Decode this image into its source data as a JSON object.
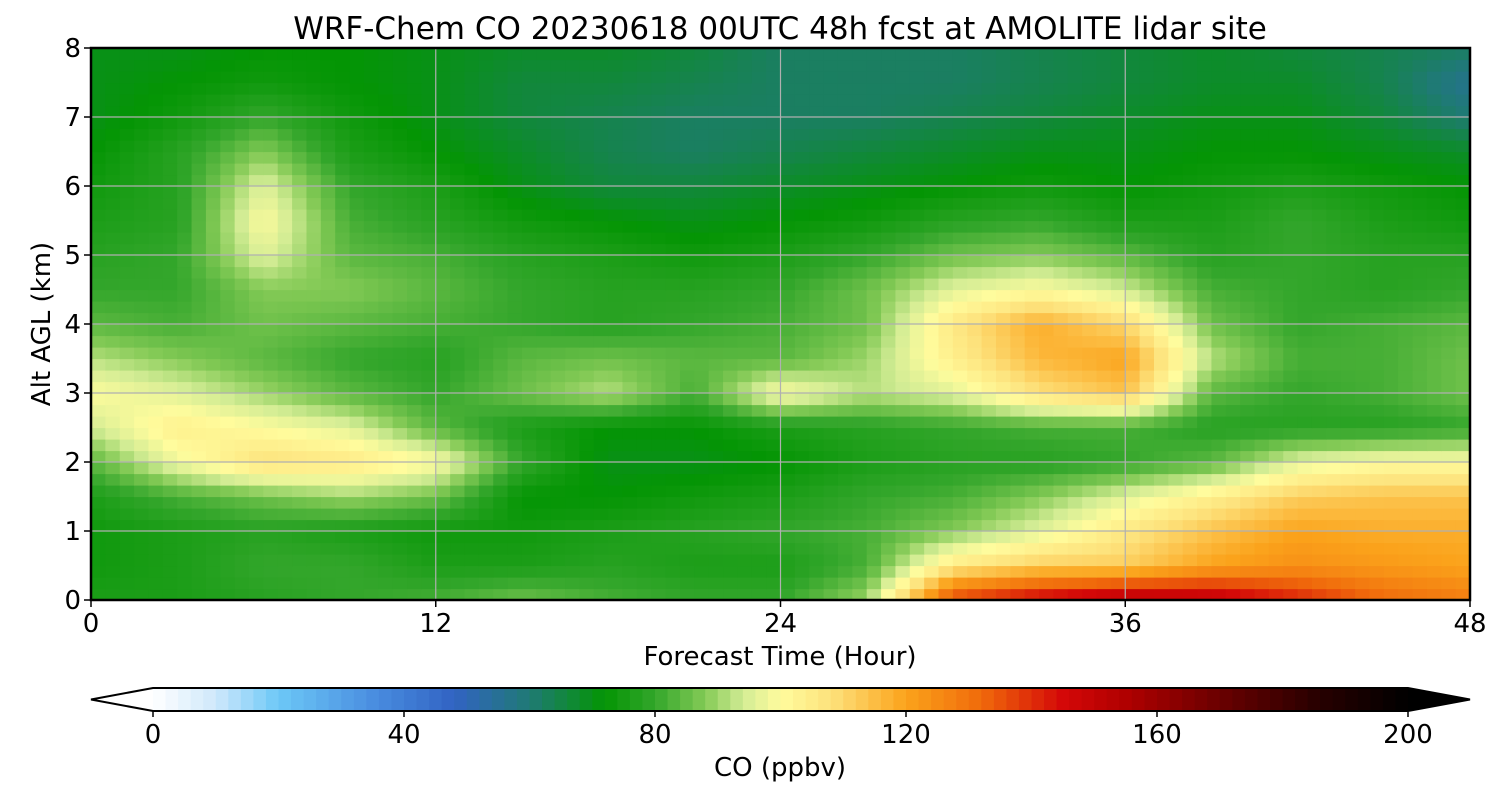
{
  "chart_data": {
    "type": "heatmap",
    "title": "WRF-Chem CO  20230618 00UTC 48h fcst at AMOLITE lidar site",
    "xlabel": "Forecast Time (Hour)",
    "ylabel": "Alt AGL (km)",
    "xlim": [
      0,
      48
    ],
    "ylim": [
      0,
      8
    ],
    "x_ticks": [
      0,
      12,
      24,
      36,
      48
    ],
    "y_ticks": [
      0,
      1,
      2,
      3,
      4,
      5,
      6,
      7,
      8
    ],
    "grid": true,
    "x": [
      0,
      3,
      6,
      9,
      12,
      15,
      18,
      21,
      24,
      27,
      30,
      33,
      36,
      39,
      42,
      45,
      48
    ],
    "y": [
      0,
      0.5,
      1,
      1.5,
      2,
      2.5,
      3,
      3.5,
      4,
      4.5,
      5,
      5.5,
      6,
      6.5,
      7,
      7.5,
      8
    ],
    "values": [
      [
        76,
        76,
        78,
        80,
        82,
        86,
        82,
        80,
        80,
        90,
        138,
        148,
        155,
        152,
        142,
        132,
        128
      ],
      [
        74,
        76,
        80,
        80,
        76,
        76,
        78,
        76,
        76,
        82,
        106,
        112,
        112,
        120,
        124,
        122,
        120
      ],
      [
        74,
        76,
        78,
        76,
        74,
        74,
        76,
        78,
        80,
        82,
        88,
        96,
        106,
        114,
        120,
        118,
        118
      ],
      [
        76,
        82,
        86,
        90,
        86,
        72,
        72,
        74,
        76,
        80,
        82,
        88,
        96,
        104,
        112,
        114,
        114
      ],
      [
        84,
        98,
        108,
        106,
        100,
        80,
        70,
        70,
        72,
        76,
        78,
        78,
        80,
        84,
        96,
        100,
        100
      ],
      [
        94,
        104,
        100,
        96,
        84,
        76,
        72,
        72,
        76,
        78,
        80,
        82,
        82,
        78,
        78,
        78,
        80
      ],
      [
        100,
        96,
        90,
        84,
        80,
        86,
        92,
        82,
        100,
        92,
        96,
        108,
        114,
        84,
        80,
        82,
        86
      ],
      [
        92,
        88,
        84,
        80,
        78,
        84,
        86,
        84,
        84,
        90,
        104,
        116,
        120,
        92,
        82,
        82,
        86
      ],
      [
        84,
        82,
        86,
        84,
        82,
        80,
        78,
        80,
        82,
        86,
        106,
        118,
        110,
        86,
        80,
        82,
        84
      ],
      [
        80,
        80,
        88,
        88,
        84,
        80,
        78,
        78,
        80,
        86,
        96,
        100,
        94,
        82,
        80,
        78,
        80
      ],
      [
        78,
        80,
        96,
        84,
        82,
        78,
        76,
        74,
        76,
        80,
        86,
        88,
        84,
        78,
        80,
        78,
        78
      ],
      [
        76,
        78,
        100,
        82,
        78,
        74,
        72,
        70,
        72,
        74,
        78,
        80,
        76,
        76,
        80,
        76,
        74
      ],
      [
        74,
        78,
        96,
        80,
        76,
        70,
        66,
        66,
        68,
        70,
        72,
        74,
        72,
        74,
        76,
        74,
        72
      ],
      [
        72,
        78,
        88,
        76,
        72,
        68,
        64,
        62,
        64,
        66,
        68,
        70,
        70,
        72,
        72,
        70,
        68
      ],
      [
        70,
        74,
        80,
        74,
        70,
        66,
        64,
        62,
        62,
        62,
        64,
        66,
        68,
        70,
        70,
        66,
        60
      ],
      [
        70,
        72,
        74,
        72,
        70,
        66,
        66,
        64,
        62,
        62,
        62,
        64,
        66,
        68,
        68,
        64,
        56
      ],
      [
        70,
        70,
        72,
        72,
        70,
        68,
        68,
        66,
        62,
        62,
        62,
        64,
        66,
        68,
        66,
        64,
        62
      ]
    ],
    "colorbar": {
      "label": "CO  (ppbv)",
      "min": 0,
      "max": 200,
      "ticks": [
        0,
        40,
        80,
        120,
        160,
        200
      ],
      "extend": "both",
      "stops": [
        {
          "v": 0,
          "c": "#ffffff"
        },
        {
          "v": 10,
          "c": "#cfe8fb"
        },
        {
          "v": 20,
          "c": "#6cc8f7"
        },
        {
          "v": 35,
          "c": "#4a8ee0"
        },
        {
          "v": 48,
          "c": "#3163c3"
        },
        {
          "v": 60,
          "c": "#1f7a74"
        },
        {
          "v": 72,
          "c": "#049504"
        },
        {
          "v": 80,
          "c": "#33a62b"
        },
        {
          "v": 88,
          "c": "#84ca56"
        },
        {
          "v": 94,
          "c": "#d2ec94"
        },
        {
          "v": 100,
          "c": "#fffc9d"
        },
        {
          "v": 108,
          "c": "#fde27c"
        },
        {
          "v": 120,
          "c": "#fba31b"
        },
        {
          "v": 132,
          "c": "#f06a0b"
        },
        {
          "v": 145,
          "c": "#d40808"
        },
        {
          "v": 155,
          "c": "#b00000"
        },
        {
          "v": 170,
          "c": "#6a0000"
        },
        {
          "v": 185,
          "c": "#2a0000"
        },
        {
          "v": 200,
          "c": "#000000"
        }
      ]
    }
  }
}
